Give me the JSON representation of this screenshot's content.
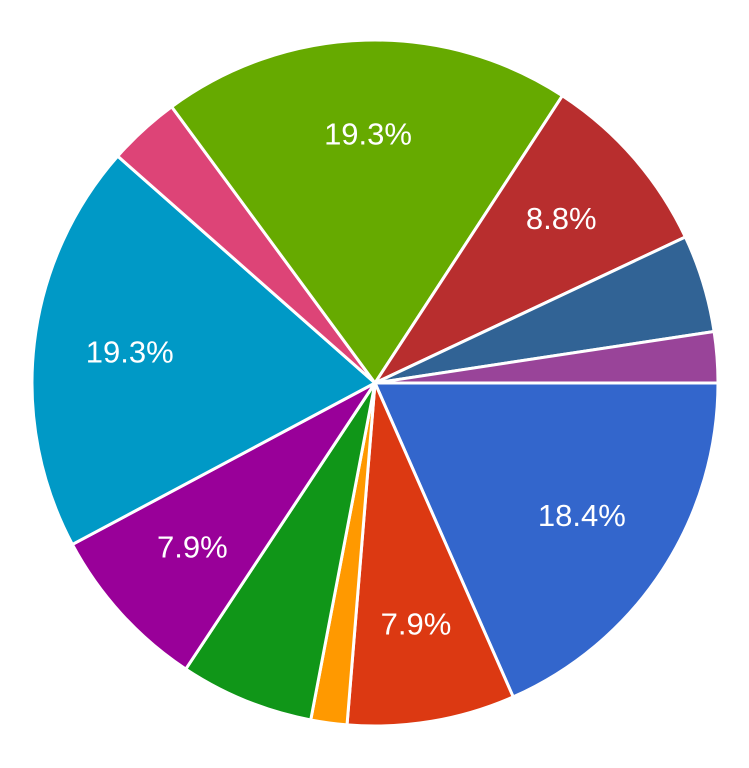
{
  "chart_data": {
    "type": "pie",
    "values": [
      18.4,
      7.9,
      1.7,
      6.3,
      7.9,
      19.3,
      3.4,
      19.3,
      8.8,
      4.6,
      2.4
    ],
    "value_labels": [
      "18.4%",
      "7.9%",
      null,
      null,
      "7.9%",
      "19.3%",
      null,
      "19.3%",
      "8.8%",
      null,
      null
    ],
    "colors": [
      "#3366cc",
      "#dc3912",
      "#ff9900",
      "#109618",
      "#990099",
      "#0099c6",
      "#dd4477",
      "#66aa00",
      "#b82e2e",
      "#316395",
      "#994499"
    ]
  }
}
